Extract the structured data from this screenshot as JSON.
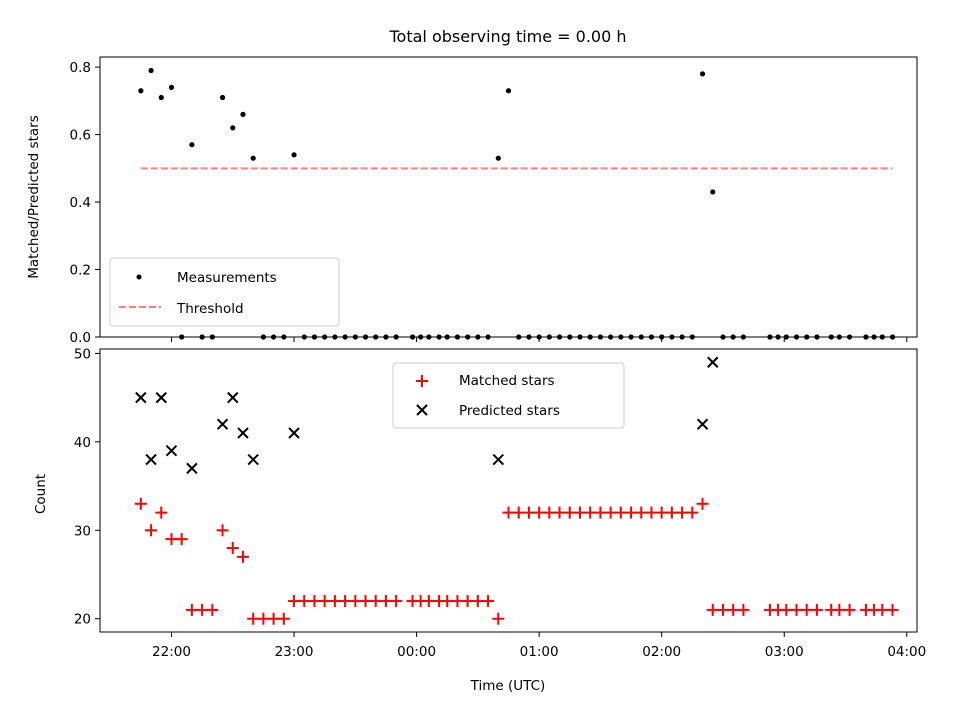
{
  "chart_data": [
    {
      "type": "scatter",
      "title": "Total observing time = 0.00 h",
      "ylabel": "Matched/Predicted stars",
      "xlabel": "",
      "xlim": [
        "21:25",
        "04:05"
      ],
      "ylim": [
        0,
        0.83
      ],
      "x_ticks": [
        "22:00",
        "23:00",
        "00:00",
        "01:00",
        "02:00",
        "03:00",
        "04:00"
      ],
      "y_ticks": [
        "0.0",
        "0.2",
        "0.4",
        "0.6",
        "0.8"
      ],
      "y_tick_values": [
        0,
        0.2,
        0.4,
        0.6,
        0.8
      ],
      "legend_position": "lower-left",
      "series": [
        {
          "name": "Measurements",
          "marker": "dot",
          "color": "#000000",
          "x": [
            "21:45",
            "21:50",
            "21:55",
            "22:00",
            "22:05",
            "22:10",
            "22:15",
            "22:20",
            "22:25",
            "22:30",
            "22:35",
            "22:40",
            "22:45",
            "22:50",
            "22:55",
            "23:00",
            "23:05",
            "23:10",
            "23:15",
            "23:20",
            "23:25",
            "23:30",
            "23:35",
            "23:40",
            "23:45",
            "23:50",
            "23:58",
            "00:02",
            "00:06",
            "00:11",
            "00:15",
            "00:20",
            "00:25",
            "00:30",
            "00:35",
            "00:40",
            "00:45",
            "00:50",
            "00:55",
            "01:00",
            "01:05",
            "01:10",
            "01:15",
            "01:20",
            "01:25",
            "01:30",
            "01:35",
            "01:40",
            "01:45",
            "01:50",
            "01:55",
            "02:00",
            "02:05",
            "02:10",
            "02:15",
            "02:20",
            "02:25",
            "02:30",
            "02:35",
            "02:40",
            "02:53",
            "02:57",
            "03:01",
            "03:06",
            "03:11",
            "03:16",
            "03:23",
            "03:27",
            "03:32",
            "03:40",
            "03:44",
            "03:48",
            "03:53"
          ],
          "y": [
            0.73,
            0.79,
            0.71,
            0.74,
            0.0,
            0.57,
            0.0,
            0.0,
            0.71,
            0.62,
            0.66,
            0.53,
            0.0,
            0.0,
            0.0,
            0.54,
            0.0,
            0.0,
            0.0,
            0.0,
            0.0,
            0.0,
            0.0,
            0.0,
            0.0,
            0.0,
            0.0,
            0.0,
            0.0,
            0.0,
            0.0,
            0.0,
            0.0,
            0.0,
            0.0,
            0.53,
            0.73,
            0.0,
            0.0,
            0.0,
            0.0,
            0.0,
            0.0,
            0.0,
            0.0,
            0.0,
            0.0,
            0.0,
            0.0,
            0.0,
            0.0,
            0.0,
            0.0,
            0.0,
            0.0,
            0.78,
            0.43,
            0.0,
            0.0,
            0.0,
            0.0,
            0.0,
            0.0,
            0.0,
            0.0,
            0.0,
            0.0,
            0.0,
            0.0,
            0.0,
            0.0,
            0.0,
            0.0
          ]
        },
        {
          "name": "Threshold",
          "marker": "dashed-line",
          "color": "#ff8080",
          "x": [
            "21:45",
            "03:53"
          ],
          "y": [
            0.5,
            0.5
          ]
        }
      ]
    },
    {
      "type": "scatter",
      "title": "",
      "xlabel": "Time (UTC)",
      "ylabel": "Count",
      "xlim": [
        "21:25",
        "04:05"
      ],
      "ylim": [
        18.5,
        50.5
      ],
      "x_ticks": [
        "22:00",
        "23:00",
        "00:00",
        "01:00",
        "02:00",
        "03:00",
        "04:00"
      ],
      "y_ticks": [
        "20",
        "30",
        "40",
        "50"
      ],
      "y_tick_values": [
        20,
        30,
        40,
        50
      ],
      "legend_position": "upper-center",
      "series": [
        {
          "name": "Matched stars",
          "marker": "plus",
          "color": "#ff0000",
          "x": [
            "21:45",
            "21:50",
            "21:55",
            "22:00",
            "22:05",
            "22:10",
            "22:15",
            "22:20",
            "22:25",
            "22:30",
            "22:35",
            "22:40",
            "22:45",
            "22:50",
            "22:55",
            "23:00",
            "23:05",
            "23:10",
            "23:15",
            "23:20",
            "23:25",
            "23:30",
            "23:35",
            "23:40",
            "23:45",
            "23:50",
            "23:58",
            "00:02",
            "00:06",
            "00:11",
            "00:15",
            "00:20",
            "00:25",
            "00:30",
            "00:35",
            "00:40",
            "00:45",
            "00:50",
            "00:55",
            "01:00",
            "01:05",
            "01:10",
            "01:15",
            "01:20",
            "01:25",
            "01:30",
            "01:35",
            "01:40",
            "01:45",
            "01:50",
            "01:55",
            "02:00",
            "02:05",
            "02:10",
            "02:15",
            "02:20",
            "02:25",
            "02:30",
            "02:35",
            "02:40",
            "02:53",
            "02:57",
            "03:01",
            "03:06",
            "03:11",
            "03:16",
            "03:23",
            "03:27",
            "03:32",
            "03:40",
            "03:44",
            "03:48",
            "03:53"
          ],
          "y": [
            33,
            30,
            32,
            29,
            29,
            21,
            21,
            21,
            30,
            28,
            27,
            20,
            20,
            20,
            20,
            22,
            22,
            22,
            22,
            22,
            22,
            22,
            22,
            22,
            22,
            22,
            22,
            22,
            22,
            22,
            22,
            22,
            22,
            22,
            22,
            20,
            32,
            32,
            32,
            32,
            32,
            32,
            32,
            32,
            32,
            32,
            32,
            32,
            32,
            32,
            32,
            32,
            32,
            32,
            32,
            33,
            21,
            21,
            21,
            21,
            21,
            21,
            21,
            21,
            21,
            21,
            21,
            21,
            21,
            21,
            21,
            21,
            21
          ]
        },
        {
          "name": "Predicted stars",
          "marker": "x",
          "color": "#000000",
          "x": [
            "21:45",
            "21:50",
            "21:55",
            "22:00",
            "22:10",
            "22:25",
            "22:30",
            "22:35",
            "22:40",
            "23:00",
            "00:40",
            "02:20",
            "02:25"
          ],
          "y": [
            45,
            38,
            45,
            39,
            37,
            42,
            45,
            41,
            38,
            41,
            38,
            42,
            49
          ]
        }
      ]
    }
  ]
}
